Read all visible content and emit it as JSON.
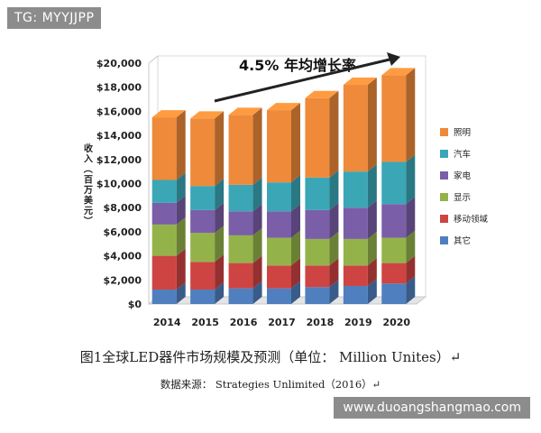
{
  "watermark_top": "TG: MYYJJPP",
  "watermark_bottom": "www.duoangshangmao.com",
  "caption": "图1全球LED器件市场规模及预测（单位： Million Unites）↵",
  "source": "数据来源： Strategies Unlimited（2016）↵",
  "colors": {
    "照明": "#ee8a3a",
    "汽车": "#3aa6b6",
    "家电": "#7a5ea8",
    "显示": "#93b34a",
    "移动领域": "#cd4443",
    "其它": "#4f7fbe"
  },
  "chart_data": {
    "type": "bar",
    "stacked": true,
    "categories": [
      "2014",
      "2015",
      "2016",
      "2017",
      "2018",
      "2019",
      "2020"
    ],
    "ylabel": "收入（百万美元）",
    "ylim": [
      0,
      20000
    ],
    "yticks": [
      "$0",
      "$2,000",
      "$4,000",
      "$6,000",
      "$8,000",
      "$10,000",
      "$12,000",
      "$14,000",
      "$16,000",
      "$18,000",
      "$20,000"
    ],
    "annotation": "4.5% 年均增长率",
    "legend_position": "right",
    "grid": false,
    "series": [
      {
        "name": "其它",
        "values": [
          1200,
          1200,
          1300,
          1300,
          1400,
          1500,
          1700
        ]
      },
      {
        "name": "移动领域",
        "values": [
          2800,
          2300,
          2100,
          1900,
          1800,
          1700,
          1700
        ]
      },
      {
        "name": "显示",
        "values": [
          2600,
          2400,
          2300,
          2300,
          2200,
          2200,
          2100
        ]
      },
      {
        "name": "家电",
        "values": [
          1800,
          1900,
          2000,
          2200,
          2400,
          2600,
          2800
        ]
      },
      {
        "name": "汽车",
        "values": [
          1900,
          2000,
          2200,
          2400,
          2700,
          3000,
          3500
        ]
      },
      {
        "name": "照明",
        "values": [
          5200,
          5600,
          5800,
          6000,
          6600,
          7200,
          7200
        ]
      }
    ]
  }
}
